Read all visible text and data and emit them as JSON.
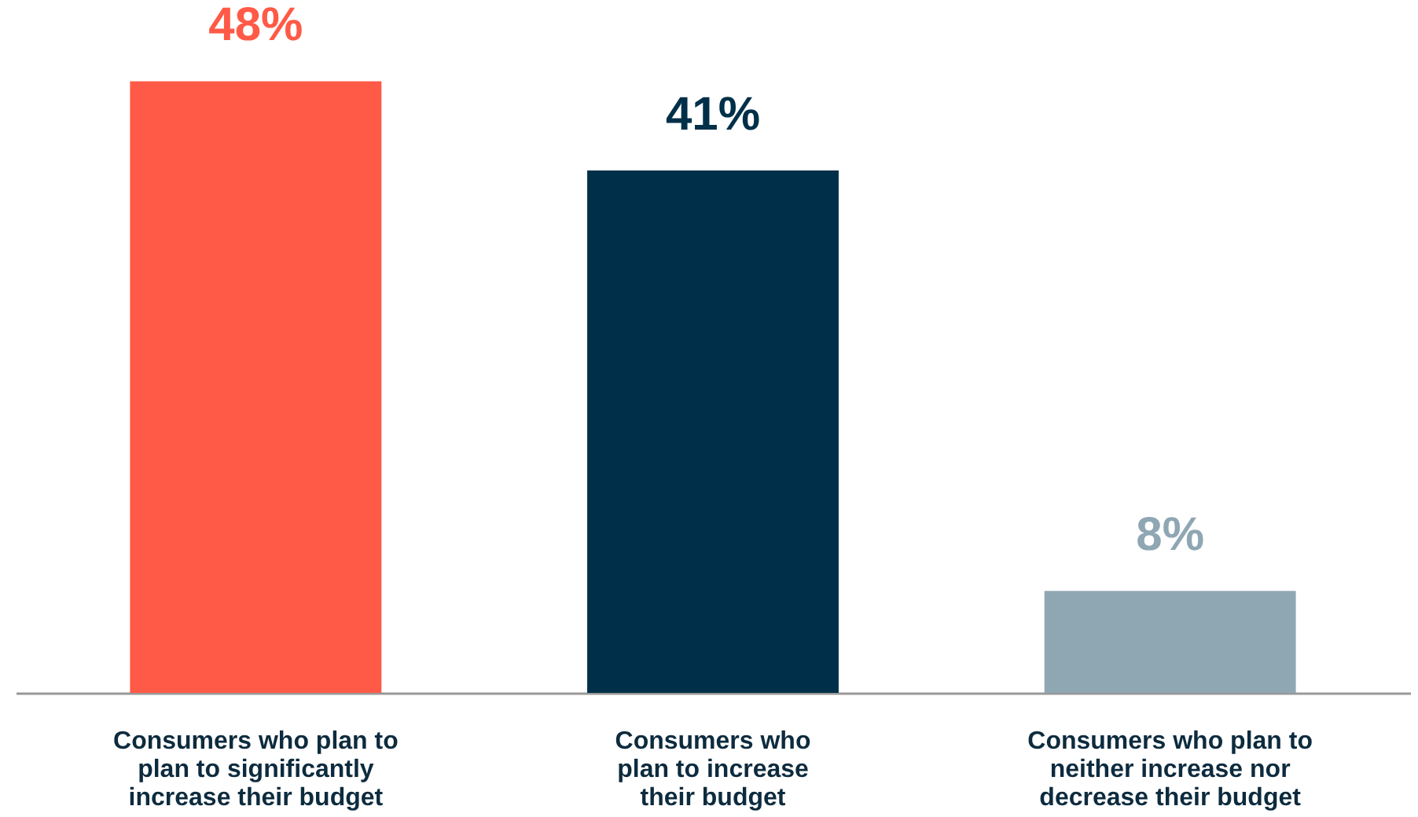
{
  "chart_data": {
    "type": "bar",
    "categories": [
      "Consumers who plan to plan to significantly increase their budget",
      "Consumers who plan to increase their budget",
      "Consumers who plan to neither increase nor decrease their budget"
    ],
    "values": [
      48,
      41,
      8
    ],
    "colors": [
      "#ff5a47",
      "#003049",
      "#8fa7b3"
    ],
    "value_labels": [
      "48%",
      "41%",
      "8%"
    ],
    "grid": false,
    "legend": false
  }
}
